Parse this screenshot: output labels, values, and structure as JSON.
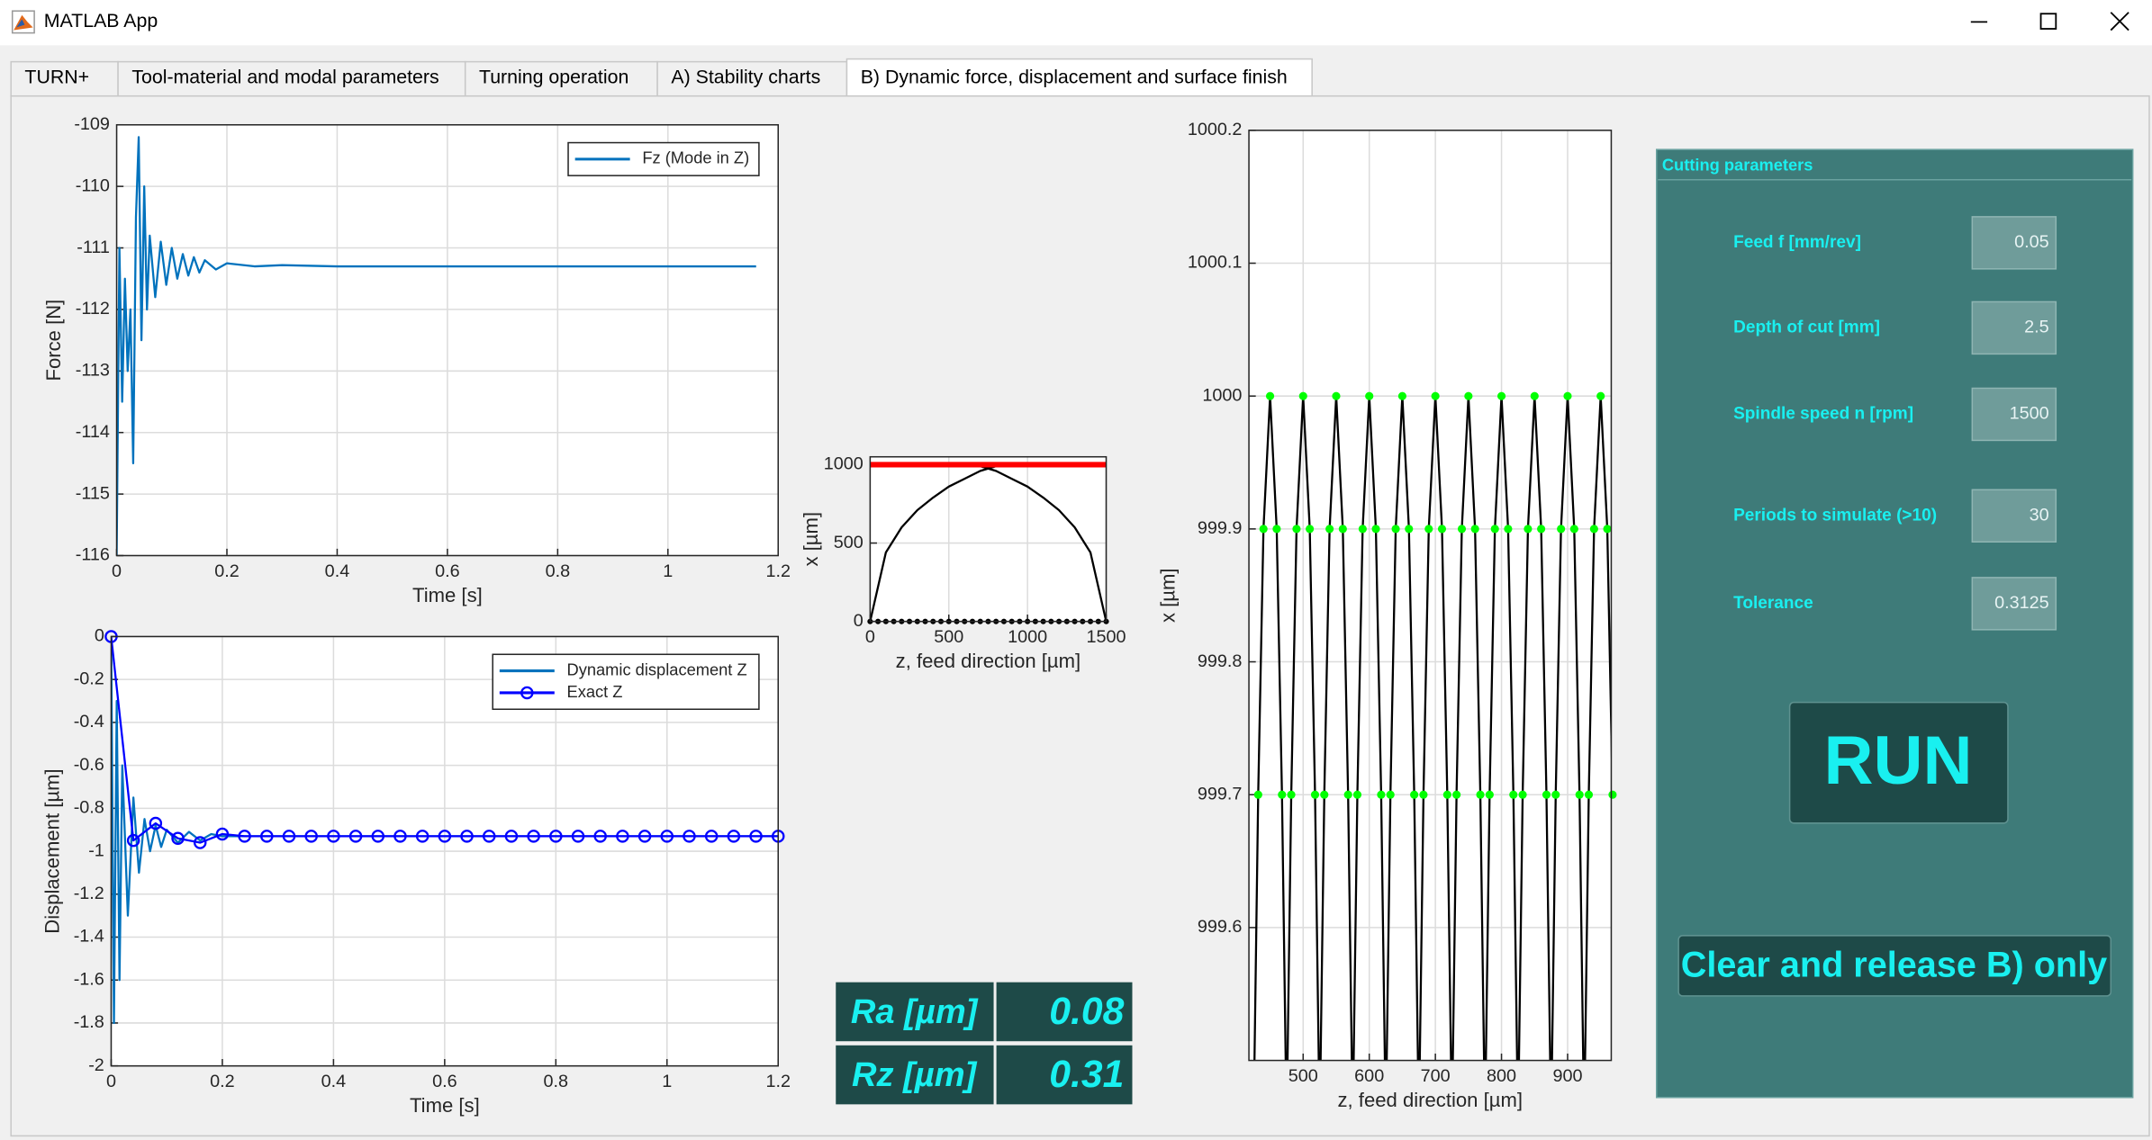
{
  "window": {
    "title": "MATLAB App"
  },
  "tab_bar": {
    "tabs": [
      "TURN+",
      "Tool-material and modal parameters",
      "Turning operation",
      "A) Stability charts",
      "B) Dynamic force, displacement and surface finish"
    ],
    "active": 4
  },
  "chart_data": [
    {
      "type": "line",
      "xlabel": "Time [s]",
      "ylabel": "Force [N]",
      "xlim": [
        0,
        1.2
      ],
      "ylim": [
        -116,
        -109
      ],
      "xticks": [
        0,
        0.2,
        0.4,
        0.6,
        0.8,
        1,
        1.2
      ],
      "yticks": [
        -116,
        -115,
        -114,
        -113,
        -112,
        -111,
        -110,
        -109
      ],
      "grid": true,
      "legend": "northeast",
      "series": [
        {
          "name": "Fz (Mode in Z)",
          "color": "#0072bd",
          "x": [
            0,
            0.005,
            0.01,
            0.015,
            0.02,
            0.025,
            0.03,
            0.035,
            0.04,
            0.045,
            0.05,
            0.055,
            0.06,
            0.07,
            0.08,
            0.09,
            0.1,
            0.11,
            0.12,
            0.13,
            0.14,
            0.15,
            0.16,
            0.18,
            0.2,
            0.25,
            0.3,
            0.4,
            0.6,
            0.8,
            1,
            1.16
          ],
          "values": [
            -116,
            -111,
            -113.5,
            -111.5,
            -113,
            -112,
            -114.5,
            -110.5,
            -109.2,
            -112.5,
            -110,
            -112,
            -110.8,
            -111.8,
            -110.9,
            -111.6,
            -111,
            -111.5,
            -111.1,
            -111.45,
            -111.15,
            -111.4,
            -111.2,
            -111.35,
            -111.25,
            -111.3,
            -111.28,
            -111.3,
            -111.3,
            -111.3,
            -111.3,
            -111.3
          ]
        }
      ]
    },
    {
      "type": "line",
      "xlabel": "Time [s]",
      "ylabel": "Displacement [µm]",
      "xlim": [
        0,
        1.2
      ],
      "ylim": [
        -2,
        0
      ],
      "xticks": [
        0,
        0.2,
        0.4,
        0.6,
        0.8,
        1,
        1.2
      ],
      "yticks": [
        -2,
        -1.8,
        -1.6,
        -1.4,
        -1.2,
        -1,
        -0.8,
        -0.6,
        -0.4,
        -0.2,
        0
      ],
      "grid": true,
      "legend": "northeast",
      "series": [
        {
          "name": "Dynamic displacement Z",
          "color": "#0072bd",
          "x": [
            0,
            0.005,
            0.01,
            0.015,
            0.02,
            0.03,
            0.04,
            0.05,
            0.06,
            0.07,
            0.08,
            0.09,
            0.1,
            0.12,
            0.14,
            0.16,
            0.18,
            0.2,
            0.3,
            0.5,
            0.8,
            1.2
          ],
          "values": [
            0,
            -1.8,
            -0.3,
            -1.6,
            -0.6,
            -1.3,
            -0.75,
            -1.1,
            -0.85,
            -1,
            -0.88,
            -0.98,
            -0.9,
            -0.96,
            -0.91,
            -0.95,
            -0.92,
            -0.93,
            -0.93,
            -0.93,
            -0.93,
            -0.93
          ]
        },
        {
          "name": "Exact Z",
          "color": "#0000ff",
          "marker": "circle",
          "x": [
            0,
            0.04,
            0.08,
            0.12,
            0.16,
            0.2,
            0.24,
            0.28,
            0.32,
            0.36,
            0.4,
            0.44,
            0.48,
            0.52,
            0.56,
            0.6,
            0.64,
            0.68,
            0.72,
            0.76,
            0.8,
            0.84,
            0.88,
            0.92,
            0.96,
            1,
            1.04,
            1.08,
            1.12,
            1.16,
            1.2
          ],
          "values": [
            0,
            -0.95,
            -0.87,
            -0.94,
            -0.96,
            -0.92,
            -0.93,
            -0.93,
            -0.93,
            -0.93,
            -0.93,
            -0.93,
            -0.93,
            -0.93,
            -0.93,
            -0.93,
            -0.93,
            -0.93,
            -0.93,
            -0.93,
            -0.93,
            -0.93,
            -0.93,
            -0.93,
            -0.93,
            -0.93,
            -0.93,
            -0.93,
            -0.93,
            -0.93,
            -0.93
          ]
        }
      ]
    },
    {
      "type": "line",
      "xlabel": "z, feed direction [µm]",
      "ylabel": "x [µm]",
      "xlim": [
        0,
        1500
      ],
      "ylim": [
        0,
        1050
      ],
      "xticks": [
        0,
        500,
        1000,
        1500
      ],
      "yticks": [
        0,
        500,
        1000
      ],
      "grid": true,
      "series": [
        {
          "color": "#000000",
          "x": [
            0,
            100,
            200,
            300,
            400,
            500,
            600,
            700,
            800
          ],
          "values": [
            0,
            440,
            600,
            710,
            790,
            860,
            910,
            960,
            990
          ]
        },
        {
          "color": "#000000",
          "x": [
            700,
            800,
            900,
            1000,
            1100,
            1200,
            1300,
            1400,
            1500
          ],
          "values": [
            990,
            960,
            910,
            860,
            790,
            710,
            600,
            440,
            0
          ]
        },
        {
          "color": "#000000",
          "linestyle": "none",
          "marker": "dot",
          "x": [
            0,
            50,
            100,
            150,
            200,
            250,
            300,
            350,
            400,
            450,
            500,
            550,
            600,
            650,
            700,
            750,
            800,
            850,
            900,
            950,
            1000,
            1050,
            1100,
            1150,
            1200,
            1250,
            1300,
            1350,
            1400,
            1450,
            1500
          ],
          "values": [
            0,
            0,
            0,
            0,
            0,
            0,
            0,
            0,
            0,
            0,
            0,
            0,
            0,
            0,
            0,
            0,
            0,
            0,
            0,
            0,
            0,
            0,
            0,
            0,
            0,
            0,
            0,
            0,
            0,
            0,
            0
          ]
        },
        {
          "color": "#ff0000",
          "width": 4,
          "x": [
            0,
            1500
          ],
          "values": [
            1000,
            1000
          ]
        }
      ]
    },
    {
      "type": "line",
      "xlabel": "z, feed direction [µm]",
      "ylabel": "x [µm]",
      "xlim": [
        418,
        966
      ],
      "ylim": [
        999.5,
        1000.2
      ],
      "xticks": [
        500,
        600,
        700,
        800,
        900
      ],
      "yticks": [
        999.6,
        999.7,
        999.8,
        999.9,
        1000,
        1000.1,
        1000.2
      ],
      "grid": true,
      "series": [
        {
          "color": "#000000",
          "marker": "dot",
          "marker_color": "#00ff00",
          "x": [
            425,
            432,
            440,
            450,
            460,
            468,
            475,
            482,
            490,
            500,
            510,
            518,
            525,
            532,
            540,
            550,
            560,
            568,
            575,
            582,
            590,
            600,
            610,
            618,
            625,
            632,
            640,
            650,
            660,
            668,
            675,
            682,
            690,
            700,
            710,
            718,
            725,
            732,
            740,
            750,
            760,
            768,
            775,
            782,
            790,
            800,
            810,
            818,
            825,
            832,
            840,
            850,
            860,
            868,
            875,
            882,
            890,
            900,
            910,
            918,
            925,
            932,
            940,
            950,
            960,
            968,
            975
          ],
          "values": [
            999.45,
            999.7,
            999.9,
            1000,
            999.9,
            999.7,
            999.45,
            999.7,
            999.9,
            1000,
            999.9,
            999.7,
            999.45,
            999.7,
            999.9,
            1000,
            999.9,
            999.7,
            999.45,
            999.7,
            999.9,
            1000,
            999.9,
            999.7,
            999.45,
            999.7,
            999.9,
            1000,
            999.9,
            999.7,
            999.45,
            999.7,
            999.9,
            1000,
            999.9,
            999.7,
            999.45,
            999.7,
            999.9,
            1000,
            999.9,
            999.7,
            999.45,
            999.7,
            999.9,
            1000,
            999.9,
            999.7,
            999.45,
            999.7,
            999.9,
            1000,
            999.9,
            999.7,
            999.45,
            999.7,
            999.9,
            1000,
            999.9,
            999.7,
            999.45,
            999.7,
            999.9,
            1000,
            999.9,
            999.7,
            999.45
          ]
        }
      ]
    }
  ],
  "results": [
    {
      "label": "Ra [µm]",
      "value": 0.08
    },
    {
      "label": "Rz [µm]",
      "value": 0.31
    }
  ],
  "panel": {
    "title": "Cutting parameters",
    "fields": [
      {
        "label": "Feed f [mm/rev]",
        "value": 0.05
      },
      {
        "label": "Depth of cut [mm]",
        "value": 2.5
      },
      {
        "label": "Spindle speed n [rpm]",
        "value": 1500
      },
      {
        "label": "Periods to simulate (>10)",
        "value": 30
      },
      {
        "label": "Tolerance",
        "value": 0.3125
      }
    ],
    "run_button": "RUN",
    "clear_button": "Clear and release B) only"
  }
}
